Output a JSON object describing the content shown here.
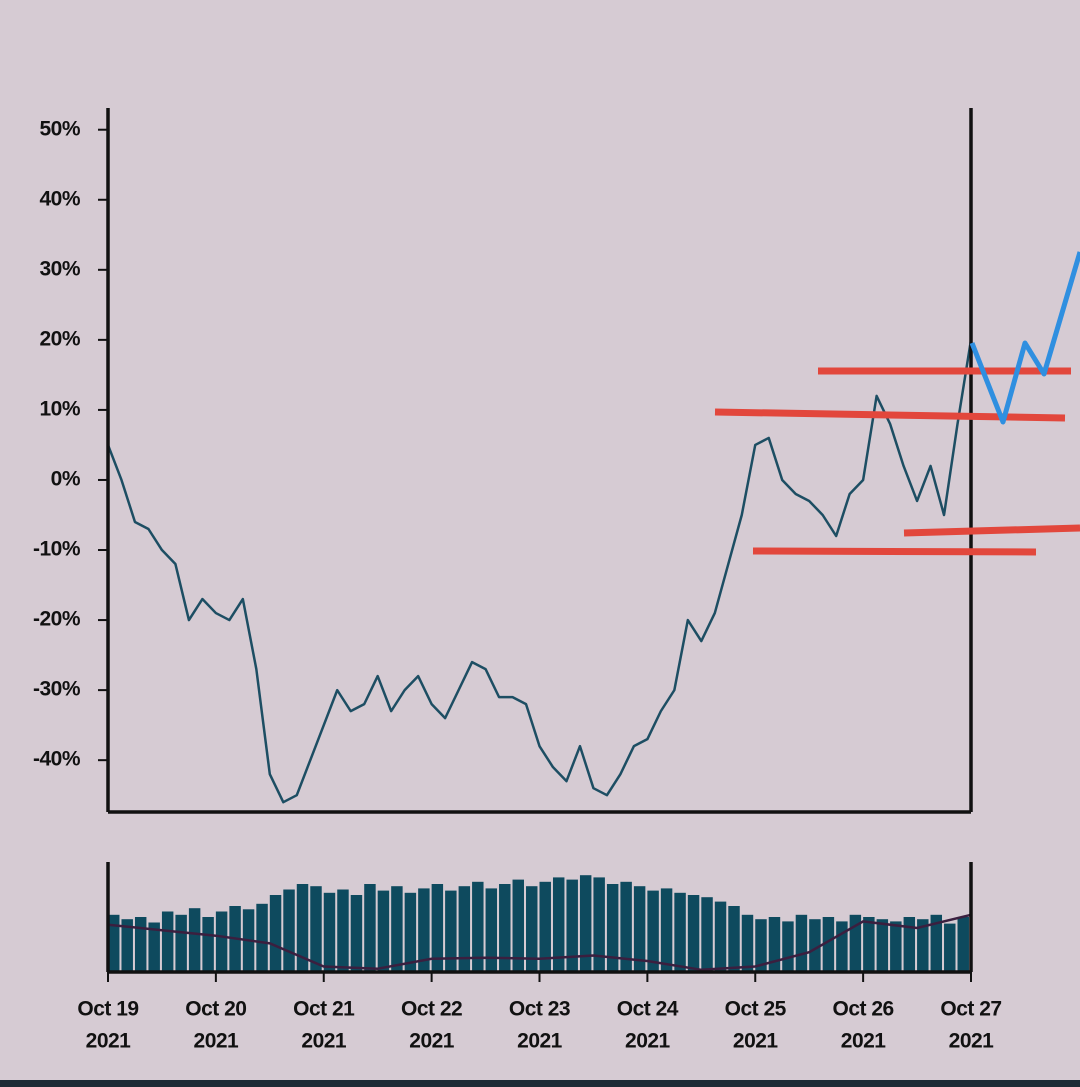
{
  "chart_data": {
    "type": "line",
    "xlim": [
      0,
      64
    ],
    "xticks": [
      {
        "value": 0,
        "label": "Oct 19",
        "sublabel": "2021"
      },
      {
        "value": 8,
        "label": "Oct 20",
        "sublabel": "2021"
      },
      {
        "value": 16,
        "label": "Oct 21",
        "sublabel": "2021"
      },
      {
        "value": 24,
        "label": "Oct 22",
        "sublabel": "2021"
      },
      {
        "value": 32,
        "label": "Oct 23",
        "sublabel": "2021"
      },
      {
        "value": 40,
        "label": "Oct 24",
        "sublabel": "2021"
      },
      {
        "value": 48,
        "label": "Oct 25",
        "sublabel": "2021"
      },
      {
        "value": 56,
        "label": "Oct 26",
        "sublabel": "2021"
      },
      {
        "value": 64,
        "label": "Oct 27",
        "sublabel": "2021"
      }
    ],
    "ylim": [
      -47.4,
      53.1
    ],
    "yticks": [
      {
        "value": 50,
        "label": "50%"
      },
      {
        "value": 40,
        "label": "40%"
      },
      {
        "value": 30,
        "label": "30%"
      },
      {
        "value": 20,
        "label": "20%"
      },
      {
        "value": 10,
        "label": "10%"
      },
      {
        "value": 0,
        "label": "0%"
      },
      {
        "value": -10,
        "label": "-10%"
      },
      {
        "value": -20,
        "label": "-20%"
      },
      {
        "value": -30,
        "label": "-30%"
      },
      {
        "value": -40,
        "label": "-40%"
      }
    ],
    "color": "#1d4e63",
    "values": [
      5,
      0,
      -6,
      -7,
      -10,
      -12,
      -20,
      -17,
      -19,
      -20,
      -17,
      -27,
      -42,
      -46,
      -45,
      -40,
      -35,
      -30,
      -33,
      -32,
      -28,
      -33,
      -30,
      -28,
      -32,
      -34,
      -30,
      -26,
      -27,
      -31,
      -31,
      -32,
      -38,
      -41,
      -43,
      -38,
      -44,
      -45,
      -42,
      -38,
      -37,
      -33,
      -30,
      -20,
      -23,
      -19,
      -12,
      -5,
      5,
      6,
      0,
      -2,
      -3,
      -5,
      -8,
      -2,
      0,
      12,
      8,
      2,
      -3,
      2,
      -5,
      8,
      20
    ],
    "volume": {
      "ylim": [
        0,
        100
      ],
      "color": "#0e4a5e",
      "ma_color": "#3b1f3f",
      "values": [
        52,
        48,
        50,
        45,
        55,
        52,
        58,
        50,
        55,
        60,
        57,
        62,
        70,
        75,
        80,
        78,
        72,
        75,
        70,
        80,
        74,
        78,
        72,
        76,
        80,
        74,
        78,
        82,
        76,
        80,
        84,
        78,
        82,
        86,
        84,
        88,
        86,
        80,
        82,
        78,
        74,
        76,
        72,
        70,
        68,
        64,
        60,
        52,
        48,
        50,
        46,
        52,
        48,
        50,
        46,
        52,
        50,
        48,
        46,
        50,
        48,
        52,
        44,
        50
      ],
      "ma": [
        43,
        38,
        33,
        26,
        5,
        3,
        12,
        13,
        12,
        15,
        10,
        2,
        5,
        18,
        46,
        40,
        52
      ]
    }
  }
}
